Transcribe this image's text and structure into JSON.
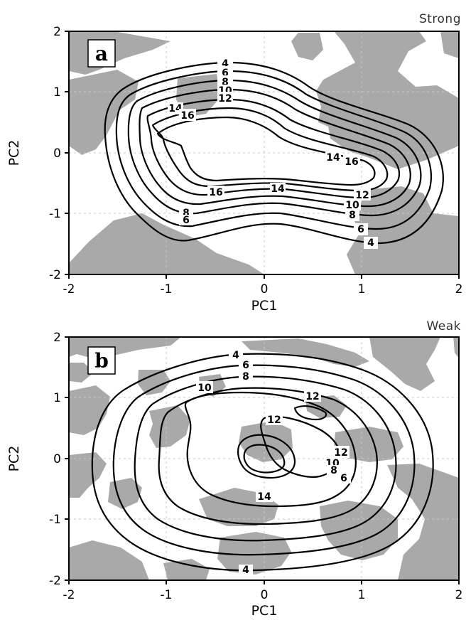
{
  "chart_data": [
    {
      "type": "contour",
      "panel_letter": "a",
      "title": "Strong",
      "xlabel": "PC1",
      "ylabel": "PC2",
      "xlim": [
        -2,
        2
      ],
      "ylim": [
        -2,
        2
      ],
      "xticks": [
        "-2",
        "-1",
        "0",
        "1",
        "2"
      ],
      "yticks": [
        "-2",
        "-1",
        "0",
        "1",
        "2"
      ],
      "grid": true,
      "shading_color": "#a9a9a9",
      "contour_levels": [
        "4",
        "6",
        "8",
        "10",
        "12",
        "14",
        "16"
      ],
      "contour_labels": [
        "4",
        "6",
        "8",
        "10",
        "12",
        "14",
        "16",
        "14",
        "16",
        "16",
        "14",
        "12",
        "10",
        "8",
        "6",
        "4",
        "8",
        "6"
      ]
    },
    {
      "type": "contour",
      "panel_letter": "b",
      "title": "Weak",
      "xlabel": "PC1",
      "ylabel": "PC2",
      "xlim": [
        -2,
        2
      ],
      "ylim": [
        -2,
        2
      ],
      "xticks": [
        "-2",
        "-1",
        "0",
        "1",
        "2"
      ],
      "yticks": [
        "-2",
        "-1",
        "0",
        "1",
        "2"
      ],
      "grid": true,
      "shading_color": "#a9a9a9",
      "contour_levels": [
        "4",
        "6",
        "8",
        "10",
        "12",
        "14"
      ],
      "contour_labels": [
        "4",
        "6",
        "8",
        "10",
        "12",
        "12",
        "12",
        "14",
        "10",
        "8",
        "6",
        "4"
      ]
    }
  ]
}
